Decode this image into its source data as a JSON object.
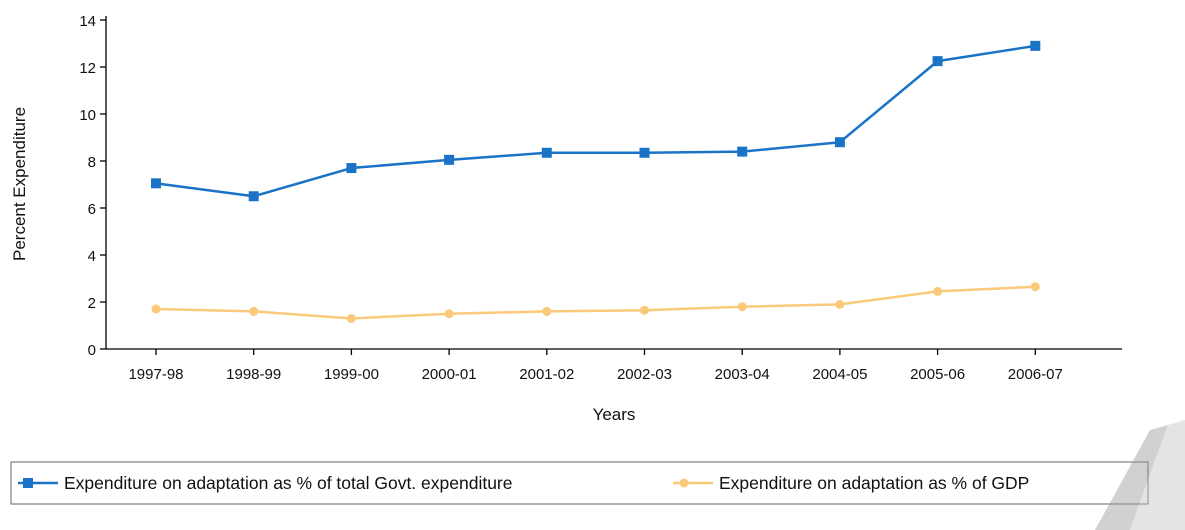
{
  "chart_data": {
    "type": "line",
    "categories": [
      "1997-98",
      "1998-99",
      "1999-00",
      "2000-01",
      "2001-02",
      "2002-03",
      "2003-04",
      "2004-05",
      "2005-06",
      "2006-07"
    ],
    "series": [
      {
        "name": "Expenditure on adaptation as % of total Govt. expenditure",
        "values": [
          7.05,
          6.5,
          7.7,
          8.05,
          8.35,
          8.35,
          8.4,
          8.8,
          12.25,
          12.9
        ],
        "color": "#1a73c7",
        "marker": "square"
      },
      {
        "name": "Expenditure on adaptation as % of GDP",
        "values": [
          1.7,
          1.6,
          1.3,
          1.5,
          1.6,
          1.65,
          1.8,
          1.9,
          2.45,
          2.65
        ],
        "color": "#fbc97a",
        "marker": "circle"
      }
    ],
    "xlabel": "Years",
    "ylabel": "Percent Expenditure",
    "ylim": [
      0,
      14
    ],
    "yticks": [
      0,
      2,
      4,
      6,
      8,
      10,
      12,
      14
    ],
    "grid": false,
    "legend": "bottom"
  }
}
